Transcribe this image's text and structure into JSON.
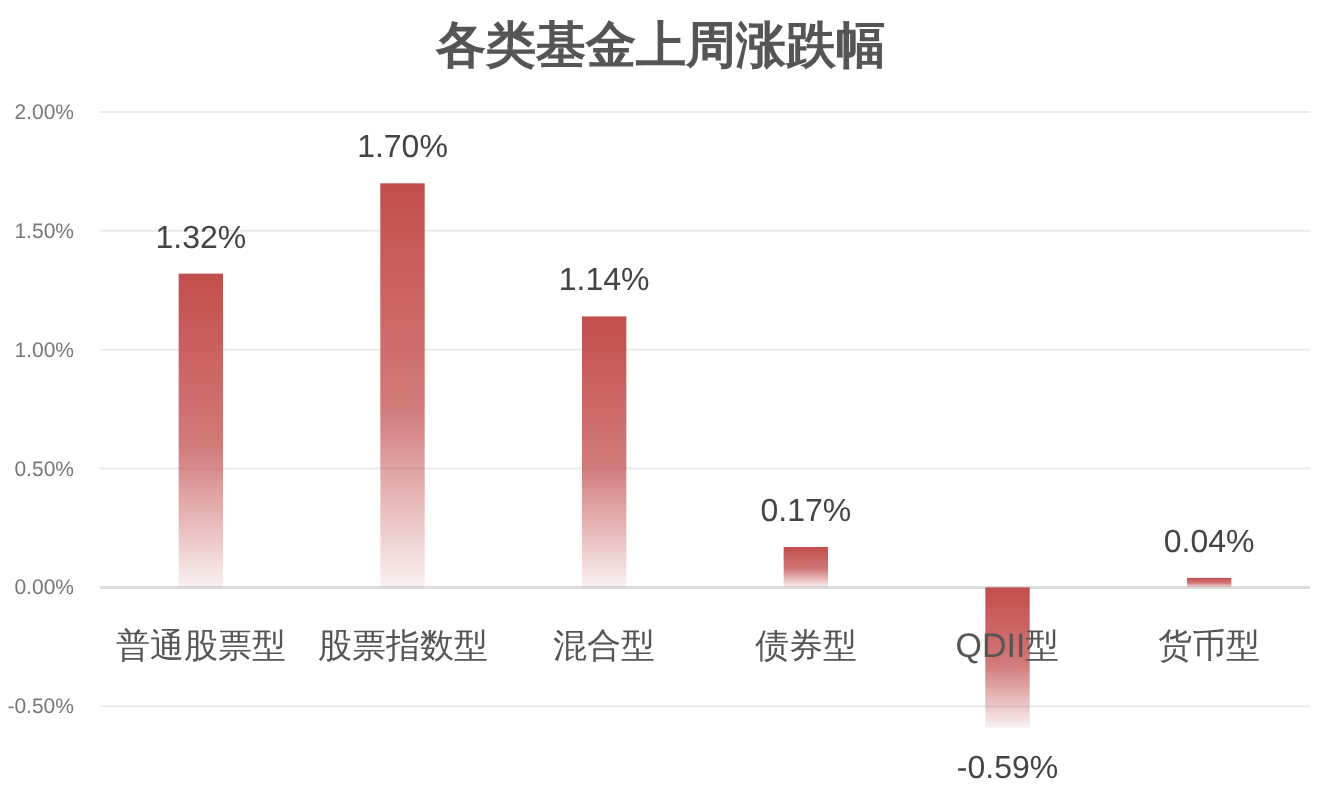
{
  "chart_data": {
    "type": "bar",
    "title": "各类基金上周涨跌幅",
    "categories": [
      "普通股票型",
      "股票指数型",
      "混合型",
      "债券型",
      "QDII型",
      "货币型"
    ],
    "values": [
      1.32,
      1.7,
      1.14,
      0.17,
      -0.59,
      0.04
    ],
    "value_labels": [
      "1.32%",
      "1.70%",
      "1.14%",
      "0.17%",
      "-0.59%",
      "0.04%"
    ],
    "color": "#c34d4d",
    "ylim": [
      -0.6,
      2.0
    ],
    "yticks": [
      {
        "value": -0.5,
        "label": "-0.50%"
      },
      {
        "value": 0,
        "label": "0.00%"
      },
      {
        "value": 0.5,
        "label": "0.50%"
      },
      {
        "value": 1.0,
        "label": "1.00%"
      },
      {
        "value": 1.5,
        "label": "1.50%"
      },
      {
        "value": 2.0,
        "label": "2.00%"
      }
    ],
    "grid": "y"
  }
}
